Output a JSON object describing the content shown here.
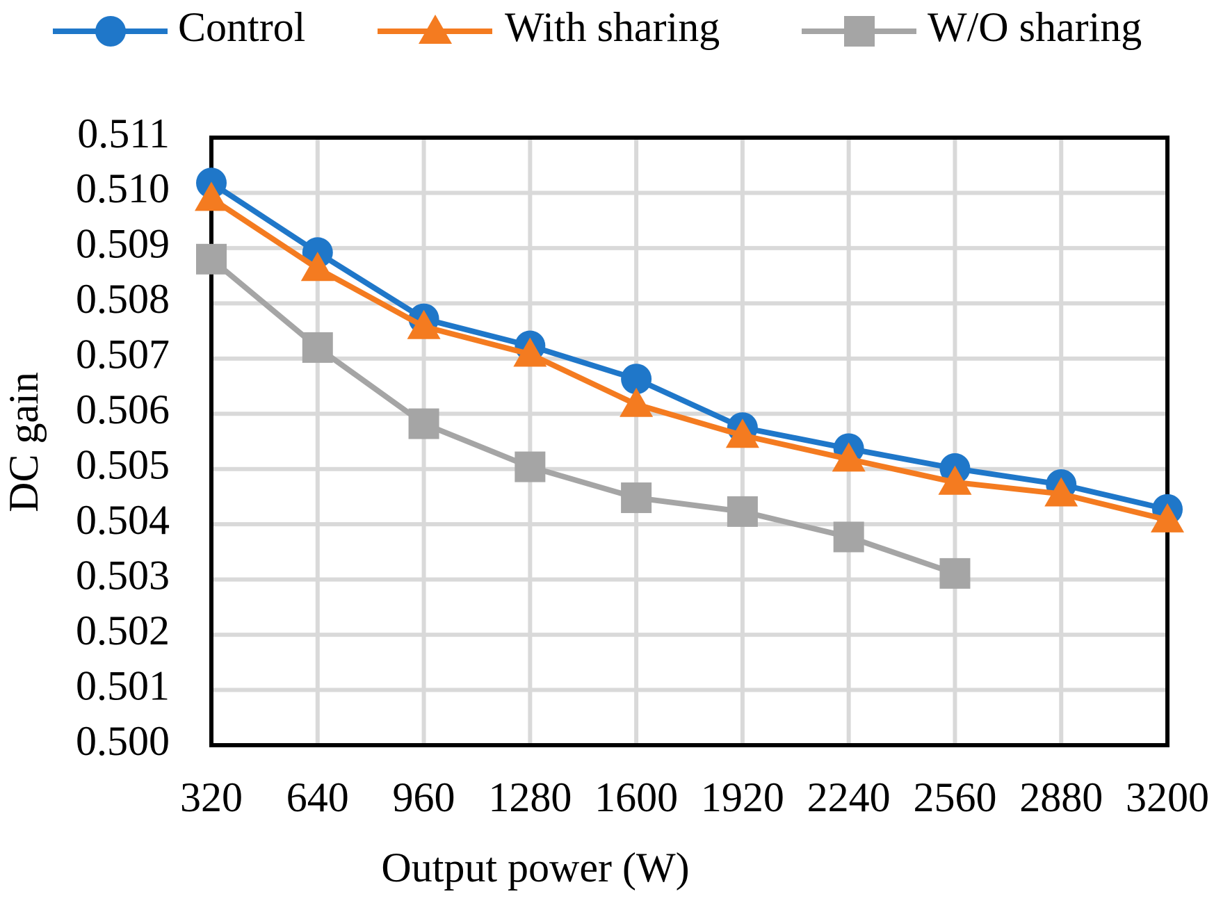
{
  "chart_data": {
    "type": "line",
    "x_label": "Output power (W)",
    "y_label": "DC gain",
    "x": [
      320,
      640,
      960,
      1280,
      1600,
      1920,
      2240,
      2560,
      2880,
      3200
    ],
    "xlim": [
      320,
      3200
    ],
    "xticks": [
      320,
      640,
      960,
      1280,
      1600,
      1920,
      2240,
      2560,
      2880,
      3200
    ],
    "ylim": [
      0.5,
      0.511
    ],
    "yticks": [
      {
        "value": 0.5,
        "label": "0.500"
      },
      {
        "value": 0.501,
        "label": "0.501"
      },
      {
        "value": 0.502,
        "label": "0.502"
      },
      {
        "value": 0.503,
        "label": "0.503"
      },
      {
        "value": 0.504,
        "label": "0.504"
      },
      {
        "value": 0.505,
        "label": "0.505"
      },
      {
        "value": 0.506,
        "label": "0.506"
      },
      {
        "value": 0.507,
        "label": "0.507"
      },
      {
        "value": 0.508,
        "label": "0.508"
      },
      {
        "value": 0.509,
        "label": "0.509"
      },
      {
        "value": 0.51,
        "label": "0.510"
      },
      {
        "value": 0.511,
        "label": "0.511"
      }
    ],
    "grid": true,
    "legend": "top",
    "series": [
      {
        "name": "Control",
        "color": "#1f77c9",
        "marker": "circle",
        "values": [
          0.51018,
          0.50892,
          0.50772,
          0.50723,
          0.50663,
          0.50575,
          0.50537,
          0.50501,
          0.50472,
          0.50427
        ]
      },
      {
        "name": "With sharing",
        "color": "#f47b20",
        "marker": "triangle",
        "values": [
          0.5099,
          0.50863,
          0.50758,
          0.50708,
          0.50617,
          0.50561,
          0.50518,
          0.50476,
          0.50455,
          0.50408
        ]
      },
      {
        "name": "W/O sharing",
        "color": "#a5a5a5",
        "marker": "square",
        "values": [
          0.5088,
          0.5072,
          0.50582,
          0.50504,
          0.50448,
          0.50423,
          0.50377,
          0.50311,
          null,
          null
        ]
      }
    ]
  }
}
